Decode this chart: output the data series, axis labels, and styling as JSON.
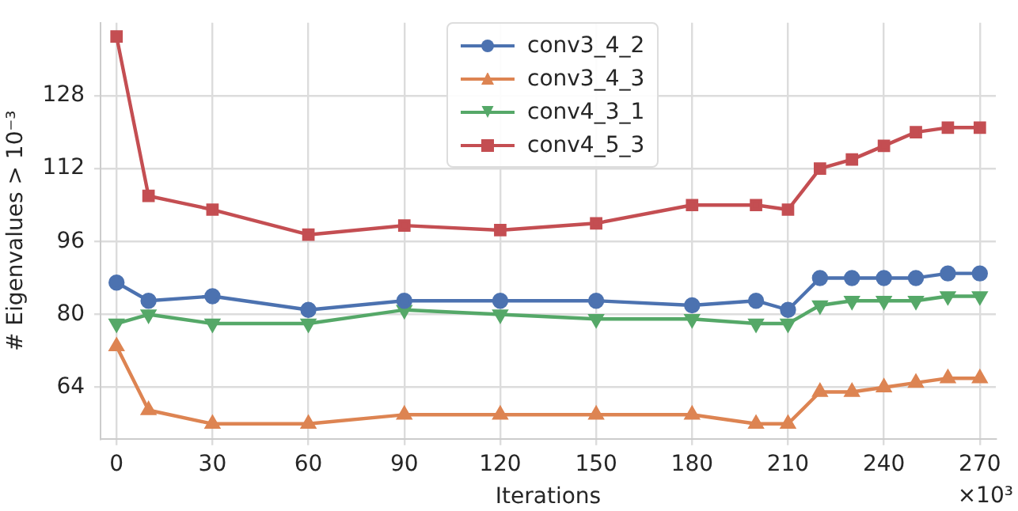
{
  "chart_data": {
    "type": "line",
    "xlabel": "Iterations",
    "ylabel": "# Eigenvalues > 10⁻³",
    "annotations": [
      "×10³"
    ],
    "x": [
      0,
      10,
      30,
      60,
      90,
      120,
      150,
      180,
      200,
      210,
      220,
      230,
      240,
      250,
      260,
      270
    ],
    "series": [
      {
        "name": "conv3_4_2",
        "color": "#4c72b0",
        "marker": "circle",
        "values": [
          87,
          83,
          84,
          81,
          83,
          83,
          83,
          82,
          83,
          81,
          88,
          88,
          88,
          88,
          89,
          89
        ]
      },
      {
        "name": "conv3_4_3",
        "color": "#dd8452",
        "marker": "triangle",
        "values": [
          73,
          59,
          56,
          56,
          58,
          58,
          58,
          58,
          56,
          56,
          63,
          63,
          64,
          65,
          66,
          66
        ]
      },
      {
        "name": "conv4_3_1",
        "color": "#55a868",
        "marker": "triangle-down",
        "values": [
          78,
          80,
          78,
          78,
          81,
          80,
          79,
          79,
          78,
          78,
          82,
          83,
          83,
          83,
          84,
          84
        ]
      },
      {
        "name": "conv4_5_3",
        "color": "#c44e52",
        "marker": "square",
        "values": [
          141,
          106,
          103,
          97.5,
          99.5,
          98.5,
          100,
          104,
          104,
          103,
          112,
          114,
          117,
          120,
          121,
          121
        ]
      }
    ],
    "xlim": [
      -5,
      275
    ],
    "xticks": [
      0,
      30,
      60,
      90,
      120,
      150,
      180,
      210,
      240,
      270
    ],
    "ylim": [
      52.7,
      144
    ],
    "yticks": [
      64,
      80,
      96,
      112,
      128
    ],
    "grid": true,
    "legend": "top",
    "line_style": "solid"
  }
}
